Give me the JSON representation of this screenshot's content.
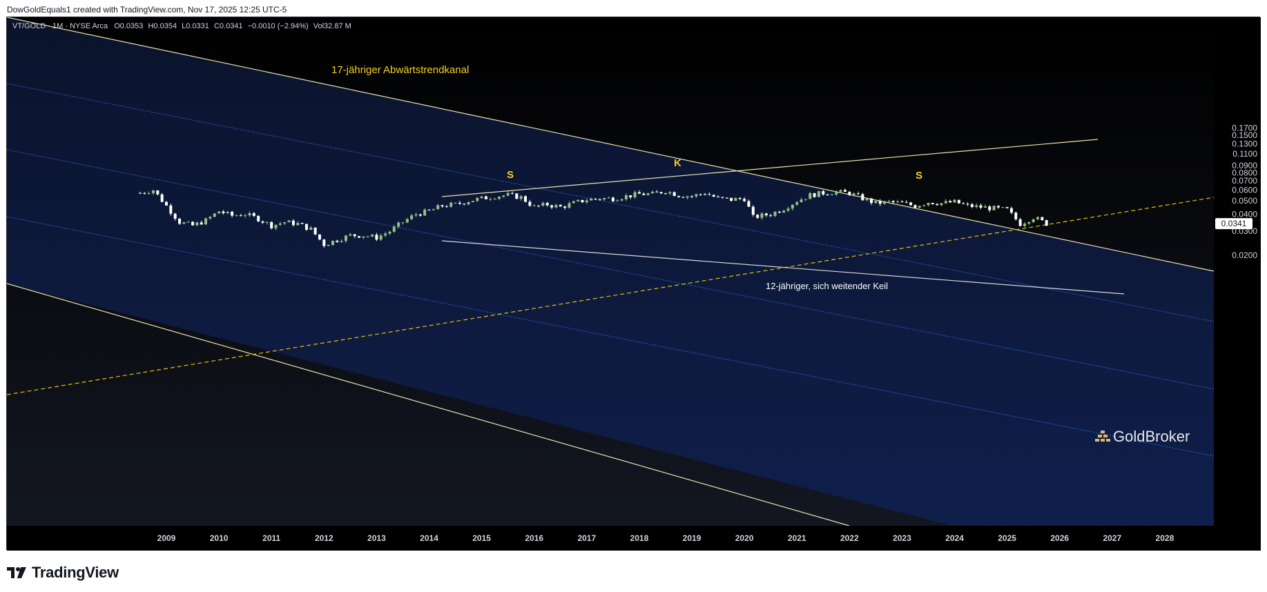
{
  "header": {
    "credit": "DowGoldEquals1 created with TradingView.com, Nov 17, 2025 12:25 UTC-5"
  },
  "legend": {
    "symbol": "VT/GOLD · 1M · NYSE Arca",
    "open": "O0.0353",
    "high": "H0.0354",
    "low": "L0.0331",
    "close": "C0.0341",
    "change": "−0.0010 (−2.94%)",
    "volume": "Vol32.87 M"
  },
  "annotations": {
    "channel_label": "17-jähriger Abwärtstrendkanal",
    "wedge_label": "12-jähriger, sich weitender Keil",
    "left_shoulder": "S",
    "head": "K",
    "right_shoulder": "S"
  },
  "watermark": {
    "text": "GoldBroker"
  },
  "footer": {
    "brand": "TradingView"
  },
  "colors": {
    "background": "#000000",
    "channel_fill": "#0c1a40",
    "channel_line": "#e8e3b0",
    "channel_mid": "#2f5fd0",
    "wedge_line": "#d9d9d9",
    "dashed_trend": "#e6c400",
    "candle_up": "#8fc37e",
    "candle_down": "#ffffff",
    "label_yellow": "#f2d024",
    "axis_text": "#d1d4dc"
  },
  "chart_data": {
    "type": "candlestick",
    "title": "VT/GOLD · 1M · NYSE Arca",
    "scale": "log",
    "ylim": [
      0.0135,
      0.175
    ],
    "xlim": [
      2008.0,
      2029.0
    ],
    "y_ticks": [
      "0.1700",
      "0.1500",
      "0.1300",
      "0.1100",
      "0.0900",
      "0.0800",
      "0.0700",
      "0.0600",
      "0.0500",
      "0.0400",
      "0.0300",
      "0.0200"
    ],
    "x_ticks": [
      "2009",
      "2010",
      "2011",
      "2012",
      "2013",
      "2014",
      "2015",
      "2016",
      "2017",
      "2018",
      "2019",
      "2020",
      "2021",
      "2022",
      "2023",
      "2024",
      "2025",
      "2026",
      "2027",
      "2028"
    ],
    "last_price": "0.0341",
    "series_close_monthly": [
      {
        "x": "2008-07",
        "v": 0.057
      },
      {
        "x": "2008-10",
        "v": 0.06
      },
      {
        "x": "2009-01",
        "v": 0.046
      },
      {
        "x": "2009-04",
        "v": 0.035
      },
      {
        "x": "2009-07",
        "v": 0.033
      },
      {
        "x": "2009-10",
        "v": 0.036
      },
      {
        "x": "2010-01",
        "v": 0.042
      },
      {
        "x": "2010-04",
        "v": 0.039
      },
      {
        "x": "2010-07",
        "v": 0.04
      },
      {
        "x": "2010-10",
        "v": 0.037
      },
      {
        "x": "2011-01",
        "v": 0.033
      },
      {
        "x": "2011-04",
        "v": 0.035
      },
      {
        "x": "2011-07",
        "v": 0.034
      },
      {
        "x": "2011-10",
        "v": 0.031
      },
      {
        "x": "2012-01",
        "v": 0.024
      },
      {
        "x": "2012-04",
        "v": 0.026
      },
      {
        "x": "2012-07",
        "v": 0.028
      },
      {
        "x": "2012-10",
        "v": 0.028
      },
      {
        "x": "2013-01",
        "v": 0.027
      },
      {
        "x": "2013-04",
        "v": 0.03
      },
      {
        "x": "2013-07",
        "v": 0.035
      },
      {
        "x": "2013-10",
        "v": 0.04
      },
      {
        "x": "2014-01",
        "v": 0.042
      },
      {
        "x": "2014-04",
        "v": 0.046
      },
      {
        "x": "2014-07",
        "v": 0.047
      },
      {
        "x": "2014-10",
        "v": 0.05
      },
      {
        "x": "2015-01",
        "v": 0.052
      },
      {
        "x": "2015-04",
        "v": 0.054
      },
      {
        "x": "2015-07",
        "v": 0.055
      },
      {
        "x": "2015-10",
        "v": 0.053
      },
      {
        "x": "2016-01",
        "v": 0.045
      },
      {
        "x": "2016-04",
        "v": 0.047
      },
      {
        "x": "2016-07",
        "v": 0.045
      },
      {
        "x": "2016-10",
        "v": 0.048
      },
      {
        "x": "2017-01",
        "v": 0.051
      },
      {
        "x": "2017-04",
        "v": 0.052
      },
      {
        "x": "2017-07",
        "v": 0.052
      },
      {
        "x": "2017-10",
        "v": 0.054
      },
      {
        "x": "2018-01",
        "v": 0.056
      },
      {
        "x": "2018-04",
        "v": 0.056
      },
      {
        "x": "2018-07",
        "v": 0.059
      },
      {
        "x": "2018-10",
        "v": 0.055
      },
      {
        "x": "2019-01",
        "v": 0.054
      },
      {
        "x": "2019-04",
        "v": 0.057
      },
      {
        "x": "2019-07",
        "v": 0.052
      },
      {
        "x": "2019-10",
        "v": 0.051
      },
      {
        "x": "2020-01",
        "v": 0.052
      },
      {
        "x": "2020-03",
        "v": 0.038
      },
      {
        "x": "2020-07",
        "v": 0.04
      },
      {
        "x": "2020-10",
        "v": 0.044
      },
      {
        "x": "2021-01",
        "v": 0.05
      },
      {
        "x": "2021-04",
        "v": 0.055
      },
      {
        "x": "2021-07",
        "v": 0.057
      },
      {
        "x": "2021-10",
        "v": 0.058
      },
      {
        "x": "2022-01",
        "v": 0.057
      },
      {
        "x": "2022-04",
        "v": 0.052
      },
      {
        "x": "2022-07",
        "v": 0.048
      },
      {
        "x": "2022-10",
        "v": 0.049
      },
      {
        "x": "2023-01",
        "v": 0.048
      },
      {
        "x": "2023-04",
        "v": 0.046
      },
      {
        "x": "2023-07",
        "v": 0.049
      },
      {
        "x": "2023-10",
        "v": 0.048
      },
      {
        "x": "2024-01",
        "v": 0.049
      },
      {
        "x": "2024-04",
        "v": 0.046
      },
      {
        "x": "2024-07",
        "v": 0.045
      },
      {
        "x": "2024-10",
        "v": 0.044
      },
      {
        "x": "2025-01",
        "v": 0.043
      },
      {
        "x": "2025-04",
        "v": 0.034
      },
      {
        "x": "2025-07",
        "v": 0.038
      },
      {
        "x": "2025-10",
        "v": 0.0341
      }
    ]
  }
}
